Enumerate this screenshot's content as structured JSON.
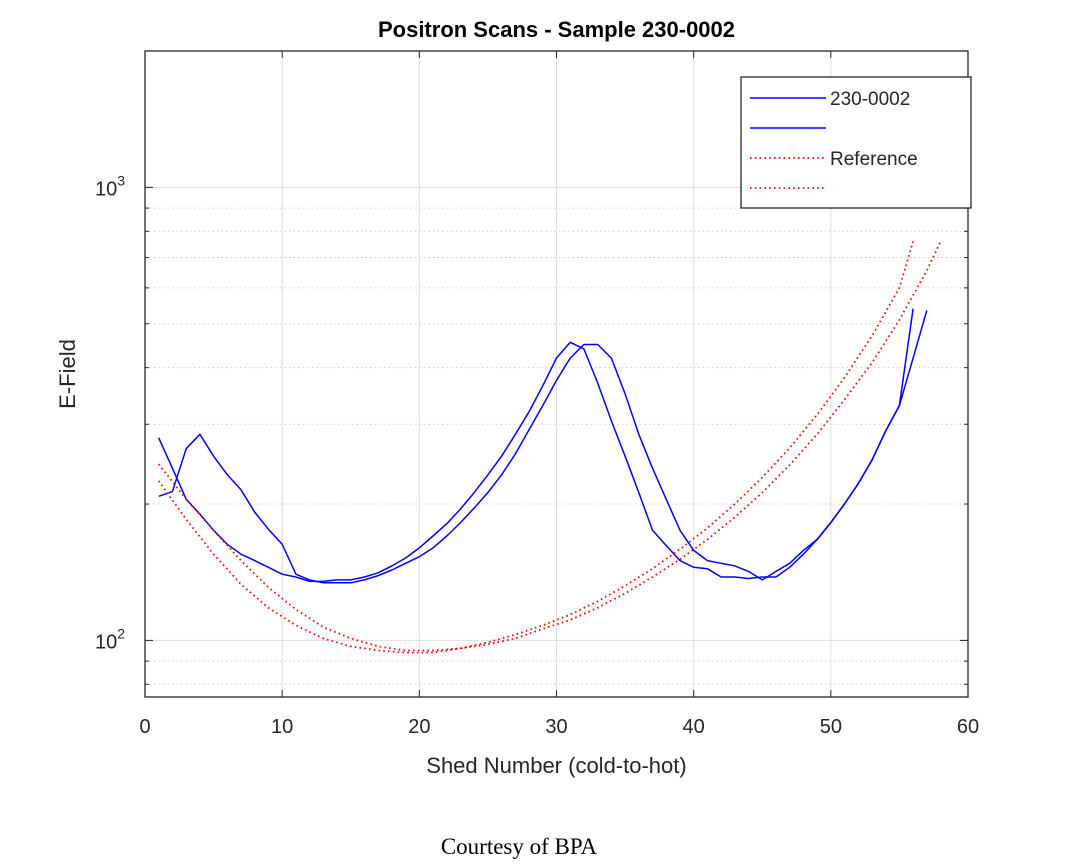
{
  "chart_data": {
    "type": "line",
    "title": "Positron Scans - Sample 230-0002",
    "xlabel": "Shed Number (cold-to-hot)",
    "ylabel": "E-Field",
    "xlim": [
      0,
      60
    ],
    "ylim": [
      75,
      2000
    ],
    "y_scale": "log",
    "x_ticks": [
      0,
      10,
      20,
      30,
      40,
      50,
      60
    ],
    "x_tick_labels": [
      "0",
      "10",
      "20",
      "30",
      "40",
      "50",
      "60"
    ],
    "y_ticks": [
      100,
      1000
    ],
    "y_tick_labels": [
      {
        "base": "10",
        "exp": "2"
      },
      {
        "base": "10",
        "exp": "3"
      }
    ],
    "grid": true,
    "legend_position": "top-right",
    "legend": [
      "230-0002",
      "",
      "Reference",
      ""
    ],
    "colors": {
      "measured": "#0000ff",
      "reference": "#ff0000",
      "grid": "#dedede",
      "minor_grid": "#cfcfcf"
    },
    "series": [
      {
        "name": "230-0002",
        "style": "solid",
        "color": "#0000ff",
        "x": [
          1,
          2,
          3,
          4,
          5,
          6,
          7,
          8,
          9,
          10,
          11,
          12,
          13,
          14,
          15,
          16,
          17,
          18,
          19,
          20,
          21,
          22,
          23,
          24,
          25,
          26,
          27,
          28,
          29,
          30,
          31,
          32,
          33,
          34,
          35,
          36,
          37,
          38,
          39,
          40,
          41,
          42,
          43,
          44,
          45,
          46,
          47,
          48,
          49,
          50,
          51,
          52,
          53,
          54,
          55,
          56
        ],
        "y": [
          280,
          240,
          205,
          190,
          175,
          163,
          155,
          150,
          145,
          140,
          138,
          135,
          135,
          136,
          136,
          138,
          141,
          146,
          152,
          160,
          170,
          181,
          195,
          212,
          232,
          255,
          285,
          320,
          365,
          420,
          455,
          440,
          370,
          305,
          255,
          212,
          175,
          162,
          150,
          145,
          144,
          138,
          138,
          137,
          138,
          138,
          145,
          155,
          167,
          182,
          200,
          222,
          250,
          290,
          330,
          540
        ]
      },
      {
        "name": "",
        "style": "solid",
        "color": "#0000ff",
        "x": [
          1,
          2,
          3,
          4,
          5,
          6,
          7,
          8,
          9,
          10,
          11,
          12,
          13,
          14,
          15,
          16,
          17,
          18,
          19,
          20,
          21,
          22,
          23,
          24,
          25,
          26,
          27,
          28,
          29,
          30,
          31,
          32,
          33,
          34,
          35,
          36,
          37,
          38,
          39,
          40,
          41,
          42,
          43,
          44,
          45,
          46,
          47,
          48,
          49,
          50,
          51,
          52,
          53,
          54,
          55,
          56,
          57
        ],
        "y": [
          208,
          213,
          265,
          285,
          255,
          232,
          215,
          192,
          176,
          163,
          140,
          136,
          134,
          134,
          134,
          136,
          139,
          143,
          148,
          153,
          160,
          170,
          182,
          196,
          212,
          232,
          258,
          292,
          330,
          375,
          420,
          450,
          450,
          420,
          350,
          285,
          240,
          205,
          175,
          158,
          150,
          148,
          146,
          142,
          136,
          142,
          148,
          158,
          167,
          182,
          200,
          222,
          250,
          290,
          330,
          420,
          535
        ]
      },
      {
        "name": "Reference",
        "style": "dotted",
        "color": "#ff0000",
        "x": [
          1,
          3,
          5,
          7,
          9,
          11,
          13,
          15,
          17,
          19,
          21,
          23,
          25,
          27,
          29,
          31,
          33,
          35,
          37,
          39,
          41,
          43,
          45,
          47,
          49,
          51,
          53,
          55,
          56
        ],
        "y": [
          245,
          205,
          175,
          150,
          131,
          117,
          107,
          101,
          97,
          95,
          95,
          96,
          99,
          103,
          108,
          114,
          122,
          132,
          144,
          159,
          177,
          200,
          229,
          266,
          315,
          380,
          470,
          600,
          760
        ]
      },
      {
        "name": "",
        "style": "dotted",
        "color": "#ff0000",
        "x": [
          1,
          3,
          5,
          7,
          9,
          11,
          13,
          15,
          17,
          19,
          21,
          23,
          25,
          27,
          29,
          31,
          33,
          35,
          37,
          39,
          41,
          43,
          45,
          47,
          49,
          51,
          53,
          55,
          57,
          58
        ],
        "y": [
          225,
          185,
          155,
          133,
          118,
          108,
          101,
          97,
          95,
          94,
          94,
          96,
          98,
          101,
          106,
          111,
          118,
          127,
          138,
          151,
          167,
          187,
          212,
          244,
          285,
          340,
          410,
          510,
          655,
          760
        ]
      }
    ]
  },
  "caption": "Courtesy of BPA"
}
